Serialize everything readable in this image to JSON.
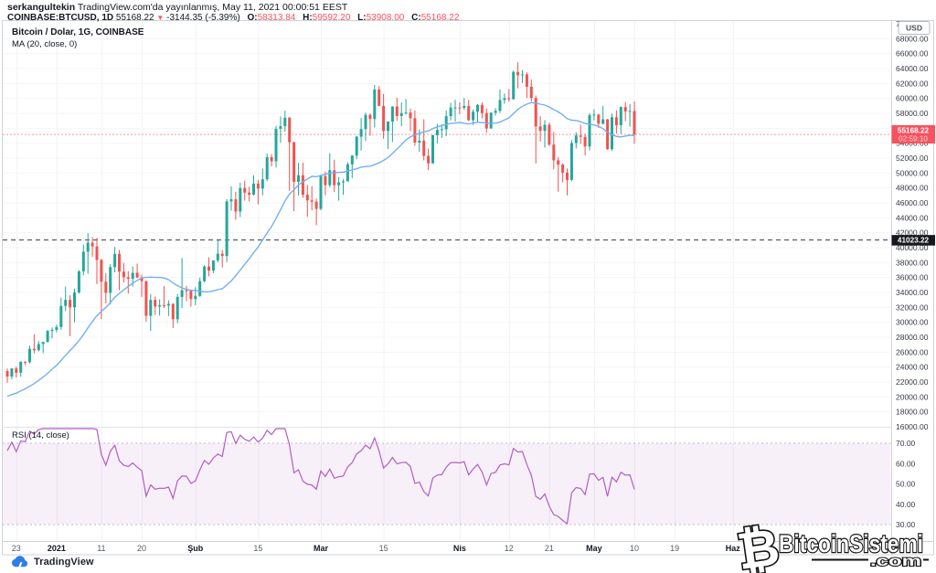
{
  "header": {
    "author": "serkangultekin",
    "byline_rest": " TradingView.com'da yayınlanmış, May 11, 2021 00:00:51 EEST",
    "symbol_line": {
      "symbol": "COINBASE:BTCUSD, 1D",
      "last": "55168.22",
      "arrow": "▼",
      "change": "-3144.35 (-5.39%)",
      "o_label": "O:",
      "o": "58313.84",
      "h_label": "H:",
      "h": "59592.20",
      "l_label": "L:",
      "l": "53908.00",
      "c_label": "C:",
      "c": "55168.22"
    }
  },
  "legend": {
    "title": "Bitcoin / Dolar, 1G, COINBASE",
    "ma": "MA (20, close, 0)",
    "rsi": "RSI (14, close)"
  },
  "price_axis": {
    "currency_badge": "USD",
    "min": 16000,
    "max": 70000,
    "step": 2000,
    "last_price_label": "55168.22",
    "countdown": "02:59:10",
    "ref_price_label": "41023.22"
  },
  "rsi_axis": {
    "values": [
      70,
      60,
      50,
      40,
      30
    ]
  },
  "time_axis": {
    "labels": [
      {
        "text": "23",
        "i": 2
      },
      {
        "text": "2021",
        "i": 11,
        "bold": true
      },
      {
        "text": "11",
        "i": 21
      },
      {
        "text": "20",
        "i": 30
      },
      {
        "text": "Şub",
        "i": 42,
        "bold": true
      },
      {
        "text": "15",
        "i": 56
      },
      {
        "text": "Mar",
        "i": 70,
        "bold": true
      },
      {
        "text": "15",
        "i": 84
      },
      {
        "text": "Nis",
        "i": 101,
        "bold": true
      },
      {
        "text": "12",
        "i": 112
      },
      {
        "text": "21",
        "i": 121
      },
      {
        "text": "May",
        "i": 131,
        "bold": true
      },
      {
        "text": "10",
        "i": 140
      },
      {
        "text": "19",
        "i": 149
      },
      {
        "text": "Haz",
        "i": 162,
        "bold": true
      }
    ]
  },
  "attribution": {
    "brand": "TradingView"
  },
  "watermark": {
    "symbol": "₿",
    "name": "BitcoinSistemi",
    "tld": ".com"
  },
  "colors": {
    "up": "#26a69a",
    "down": "#ef5350",
    "ma_line": "#74b0ee",
    "rsi_line": "#b05ec3",
    "rsi_band_fill": "#9c27b0",
    "price_line": "#f7525f",
    "ref_line": "#16181d",
    "badge_red": "#f7525f",
    "badge_black": "#16181d",
    "axis_text": "#363a45",
    "grid": "#f0f2f5",
    "border": "#cfd3dc"
  },
  "chart_data": {
    "type": "candlestick",
    "symbol": "COINBASE:BTCUSD",
    "interval": "1D",
    "title": "Bitcoin / Dolar, 1G, COINBASE",
    "visible_range": [
      "2020-12-21",
      "2021-05-10"
    ],
    "price_ylim": [
      16000,
      70000
    ],
    "rsi_ylim_lines": [
      30,
      70
    ],
    "last_close": 55168.22,
    "countdown": "02:59:10",
    "ref_level": 41023.22,
    "indicators": [
      {
        "name": "MA",
        "length": 20,
        "source": "close"
      },
      {
        "name": "RSI",
        "length": 14,
        "source": "close"
      }
    ],
    "seed_closes_before_visible": [
      18800,
      19200,
      19440,
      18650,
      19150,
      19350,
      19390,
      18320,
      18550,
      18810,
      18030,
      18800,
      19170,
      19270,
      19430,
      21310,
      22805,
      23110,
      22745,
      23470
    ],
    "candles_ohlc": [
      [
        23470,
        23800,
        21900,
        22720
      ],
      [
        22720,
        23830,
        22350,
        23820
      ],
      [
        23820,
        24100,
        22600,
        23240
      ],
      [
        23240,
        24780,
        22700,
        24710
      ],
      [
        24710,
        24790,
        24250,
        24660
      ],
      [
        24660,
        26850,
        24500,
        26440
      ],
      [
        26440,
        28400,
        25850,
        26270
      ],
      [
        26270,
        27480,
        26100,
        27080
      ],
      [
        27080,
        27410,
        25880,
        27360
      ],
      [
        27360,
        28990,
        27320,
        28840
      ],
      [
        28840,
        29320,
        27850,
        28990
      ],
      [
        28990,
        29680,
        28650,
        29370
      ],
      [
        29370,
        33300,
        29000,
        32190
      ],
      [
        32190,
        34800,
        31500,
        33000
      ],
      [
        33000,
        33640,
        28150,
        32010
      ],
      [
        32010,
        34500,
        30000,
        33990
      ],
      [
        33990,
        37000,
        33850,
        36830
      ],
      [
        36830,
        40400,
        36300,
        39460
      ],
      [
        39460,
        41950,
        36500,
        40670
      ],
      [
        40670,
        41400,
        38800,
        40170
      ],
      [
        40170,
        41350,
        35111,
        38350
      ],
      [
        38350,
        38500,
        30420,
        35440
      ],
      [
        35440,
        36600,
        32531,
        33950
      ],
      [
        33950,
        37800,
        32380,
        37390
      ],
      [
        37390,
        40100,
        36700,
        39160
      ],
      [
        39160,
        39700,
        34298,
        36790
      ],
      [
        36790,
        37950,
        35357,
        36040
      ],
      [
        36040,
        36860,
        33850,
        35830
      ],
      [
        35830,
        37470,
        34800,
        36630
      ],
      [
        36630,
        37857,
        35900,
        36000
      ],
      [
        36000,
        36400,
        33400,
        35510
      ],
      [
        35510,
        35600,
        30071,
        30870
      ],
      [
        30870,
        33800,
        28850,
        33000
      ],
      [
        33000,
        33456,
        31000,
        32110
      ],
      [
        32110,
        33071,
        30900,
        32290
      ],
      [
        32290,
        34875,
        31910,
        32250
      ],
      [
        32250,
        32930,
        30837,
        32470
      ],
      [
        32470,
        32570,
        29241,
        30410
      ],
      [
        30410,
        33800,
        29900,
        33400
      ],
      [
        33400,
        38600,
        31915,
        34300
      ],
      [
        34300,
        34850,
        32840,
        34270
      ],
      [
        34270,
        34350,
        32100,
        33110
      ],
      [
        33110,
        34700,
        32300,
        33530
      ],
      [
        33530,
        35985,
        33400,
        35510
      ],
      [
        35510,
        37650,
        35350,
        37470
      ],
      [
        37470,
        38700,
        36160,
        36930
      ],
      [
        36930,
        38310,
        36570,
        38290
      ],
      [
        38290,
        41000,
        38030,
        39190
      ],
      [
        39190,
        39700,
        37351,
        38880
      ],
      [
        38880,
        46500,
        38076,
        46200
      ],
      [
        46200,
        48200,
        44961,
        46480
      ],
      [
        46480,
        47500,
        43727,
        44840
      ],
      [
        44840,
        48700,
        44100,
        47990
      ],
      [
        47990,
        48950,
        46300,
        47380
      ],
      [
        47380,
        48150,
        46202,
        47110
      ],
      [
        47110,
        49700,
        47014,
        48590
      ],
      [
        48590,
        49100,
        45800,
        47920
      ],
      [
        47920,
        50600,
        47010,
        49160
      ],
      [
        49160,
        52600,
        48900,
        52120
      ],
      [
        52120,
        52530,
        50900,
        51580
      ],
      [
        51580,
        56300,
        50740,
        55920
      ],
      [
        55920,
        57560,
        54050,
        56270
      ],
      [
        56270,
        58350,
        55550,
        57410
      ],
      [
        57410,
        57500,
        47622,
        54120
      ],
      [
        54120,
        54200,
        44900,
        48820
      ],
      [
        48820,
        51350,
        47000,
        49700
      ],
      [
        49700,
        51400,
        46674,
        47090
      ],
      [
        47090,
        48400,
        44130,
        46340
      ],
      [
        46340,
        48250,
        45000,
        46160
      ],
      [
        46160,
        46580,
        43000,
        45200
      ],
      [
        45200,
        49800,
        45000,
        49600
      ],
      [
        49600,
        50200,
        47047,
        48370
      ],
      [
        48370,
        52650,
        48100,
        50380
      ],
      [
        50380,
        51800,
        47450,
        48370
      ],
      [
        48370,
        49460,
        46300,
        48750
      ],
      [
        48750,
        49200,
        47070,
        48880
      ],
      [
        48880,
        51440,
        48880,
        51170
      ],
      [
        51170,
        52400,
        49330,
        52340
      ],
      [
        52340,
        55000,
        51850,
        54870
      ],
      [
        54870,
        57380,
        53000,
        55890
      ],
      [
        55890,
        58100,
        54300,
        57800
      ],
      [
        57800,
        57990,
        55000,
        57240
      ],
      [
        57240,
        61780,
        56100,
        61190
      ],
      [
        61190,
        61650,
        58950,
        59000
      ],
      [
        59000,
        60600,
        54590,
        55630
      ],
      [
        55630,
        56900,
        53221,
        56900
      ],
      [
        56900,
        58950,
        54155,
        58910
      ],
      [
        58910,
        60100,
        57000,
        57640
      ],
      [
        57640,
        59450,
        56270,
        58030
      ],
      [
        58030,
        59900,
        57820,
        58100
      ],
      [
        58100,
        58650,
        55600,
        57350
      ],
      [
        57350,
        58400,
        53650,
        54080
      ],
      [
        54080,
        55850,
        52850,
        54340
      ],
      [
        54340,
        57200,
        51700,
        52300
      ],
      [
        52300,
        53250,
        50400,
        51300
      ],
      [
        51300,
        55100,
        51250,
        55070
      ],
      [
        55070,
        56600,
        53975,
        55780
      ],
      [
        55780,
        56550,
        54700,
        55870
      ],
      [
        55870,
        58400,
        54950,
        57620
      ],
      [
        57620,
        59400,
        57050,
        58770
      ],
      [
        58770,
        59800,
        56900,
        58780
      ],
      [
        58780,
        59470,
        57900,
        58730
      ],
      [
        58730,
        60050,
        58450,
        58990
      ],
      [
        58990,
        59800,
        56950,
        57080
      ],
      [
        57080,
        58500,
        56450,
        58210
      ],
      [
        58210,
        59260,
        56820,
        59130
      ],
      [
        59130,
        59480,
        57330,
        58020
      ],
      [
        58020,
        58650,
        55400,
        55970
      ],
      [
        55970,
        58150,
        55950,
        58080
      ],
      [
        58080,
        58700,
        57700,
        58330
      ],
      [
        58330,
        61200,
        58050,
        59790
      ],
      [
        59790,
        60650,
        59270,
        60040
      ],
      [
        60040,
        61250,
        59550,
        59890
      ],
      [
        59890,
        63740,
        59850,
        63540
      ],
      [
        63540,
        64850,
        61350,
        63100
      ],
      [
        63100,
        63800,
        62050,
        63220
      ],
      [
        63220,
        63500,
        60050,
        61570
      ],
      [
        61570,
        62550,
        59600,
        60050
      ],
      [
        60050,
        60400,
        51300,
        56250
      ],
      [
        56250,
        57600,
        54200,
        55650
      ],
      [
        55650,
        57100,
        53400,
        56470
      ],
      [
        56470,
        56750,
        53600,
        53810
      ],
      [
        53810,
        55500,
        50500,
        51700
      ],
      [
        51700,
        52150,
        47500,
        51130
      ],
      [
        51130,
        51300,
        48750,
        50050
      ],
      [
        50050,
        50600,
        47000,
        49080
      ],
      [
        49080,
        54400,
        48900,
        54020
      ],
      [
        54020,
        55480,
        53300,
        55030
      ],
      [
        55030,
        56480,
        53880,
        54850
      ],
      [
        54850,
        55250,
        52350,
        53560
      ],
      [
        53560,
        58000,
        53050,
        57750
      ],
      [
        57750,
        58550,
        57050,
        57830
      ],
      [
        57830,
        57950,
        56050,
        56600
      ],
      [
        56600,
        58986,
        56500,
        57200
      ],
      [
        57200,
        57250,
        53100,
        53200
      ],
      [
        53200,
        57950,
        52950,
        57470
      ],
      [
        57470,
        58400,
        55300,
        56400
      ],
      [
        56400,
        58900,
        55250,
        58850
      ],
      [
        58850,
        59500,
        56950,
        58250
      ],
      [
        58250,
        59250,
        56200,
        58310
      ],
      [
        58313.84,
        59592.2,
        53908,
        55168.22
      ]
    ]
  }
}
